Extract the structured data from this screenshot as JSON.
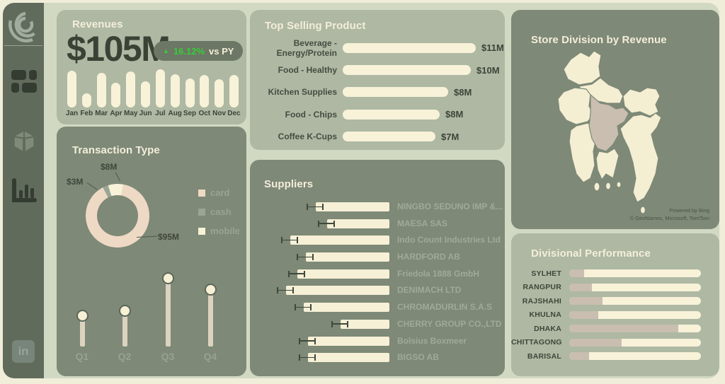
{
  "colors": {
    "frame": "#f0edd9",
    "background": "#d2d9c3",
    "sidebar": "#616b5c",
    "panel_light": "#aeb8a3",
    "panel_dark": "#7e8977",
    "cream": "#f8f2d9",
    "peach": "#eed9c5",
    "gray": "#9aa595",
    "taupe": "#c9beb0",
    "text_dark": "#3a4135",
    "text_light": "#f3eeda",
    "text_muted": "#a0aa97",
    "green": "#38cd38"
  },
  "sidebar": {
    "icons": [
      "logo-arcs",
      "dashboard-grid",
      "cube",
      "bar-chart",
      "linkedin"
    ],
    "linkedin_text": "in"
  },
  "revenues": {
    "title": "Revenues",
    "value": "$105M",
    "delta_arrow": "▲",
    "delta": "16.12%",
    "delta_label": "vs PY",
    "months": [
      "Jan",
      "Feb",
      "Mar",
      "Apr",
      "May",
      "Jun",
      "Jul",
      "Aug",
      "Sep",
      "Oct",
      "Nov",
      "Dec"
    ],
    "values": [
      96,
      38,
      90,
      64,
      95,
      69,
      100,
      88,
      76,
      86,
      75,
      86
    ]
  },
  "transaction": {
    "title": "Transaction Type",
    "segments": [
      {
        "label": "card",
        "value_m": 95,
        "display": "$95M",
        "color": "#eed9c5"
      },
      {
        "label": "cash",
        "value_m": 3,
        "display": "$3M",
        "color": "#9aa595"
      },
      {
        "label": "mobile",
        "value_m": 8,
        "display": "$8M",
        "color": "#f8f2d9"
      }
    ],
    "quarters": {
      "categories": [
        "Q1",
        "Q2",
        "Q3",
        "Q4"
      ],
      "values": [
        42,
        50,
        100,
        83
      ]
    }
  },
  "top_selling": {
    "title": "Top Selling Product",
    "items": [
      {
        "label": "Beverage - Energy/Protein",
        "value": "$11M",
        "length": 188
      },
      {
        "label": "Food - Healthy",
        "value": "$10M",
        "length": 181
      },
      {
        "label": "Kitchen Supplies",
        "value": "$8M",
        "length": 149
      },
      {
        "label": "Food - Chips",
        "value": "$8M",
        "length": 137
      },
      {
        "label": "Coffee K-Cups",
        "value": "$7M",
        "length": 131
      }
    ]
  },
  "suppliers": {
    "title": "Suppliers",
    "items": [
      {
        "label": "NINGBO SEDUNO IMP &...",
        "length": 71
      },
      {
        "label": "MAESA SAS",
        "length": 60
      },
      {
        "label": "Indo Count Industries Ltd",
        "length": 96
      },
      {
        "label": "HARDFORD AB",
        "length": 81
      },
      {
        "label": "Friedola 1888 GmbH",
        "length": 89
      },
      {
        "label": "DENIMACH LTD",
        "length": 100
      },
      {
        "label": "CHROMADURLIN S.A.S",
        "length": 83
      },
      {
        "label": "CHERRY GROUP CO.,LTD",
        "length": 47
      },
      {
        "label": "Bolsius Boxmeer",
        "length": 79
      },
      {
        "label": "BIGSO AB",
        "length": 79
      }
    ]
  },
  "map_panel": {
    "title": "Store Division by Revenue",
    "highlighted_division": "Dhaka",
    "attribution_line1": "Powered by Bing",
    "attribution_line2": "© GeoNames, Microsoft, TomTom"
  },
  "divisional": {
    "title": "Divisional Performance",
    "items": [
      {
        "label": "SYLHET",
        "fill": 11
      },
      {
        "label": "RANGPUR",
        "fill": 17
      },
      {
        "label": "RAJSHAHI",
        "fill": 25
      },
      {
        "label": "KHULNA",
        "fill": 22
      },
      {
        "label": "DHAKA",
        "fill": 83
      },
      {
        "label": "CHITTAGONG",
        "fill": 40
      },
      {
        "label": "BARISAL",
        "fill": 15
      }
    ]
  },
  "chart_data": [
    {
      "type": "bar",
      "title": "Revenues",
      "kpi": "$105M",
      "kpi_delta": "▲ 16.12% vs PY",
      "categories": [
        "Jan",
        "Feb",
        "Mar",
        "Apr",
        "May",
        "Jun",
        "Jul",
        "Aug",
        "Sep",
        "Oct",
        "Nov",
        "Dec"
      ],
      "values": [
        96,
        38,
        90,
        64,
        95,
        69,
        100,
        88,
        76,
        86,
        75,
        86
      ],
      "note": "monthly bars, no value axis shown; values are relative heights (% of max)"
    },
    {
      "type": "pie",
      "title": "Transaction Type",
      "labels": [
        "card",
        "cash",
        "mobile"
      ],
      "values": [
        95,
        3,
        8
      ],
      "unit": "$M",
      "labels_display": [
        "$95M",
        "$3M",
        "$8M"
      ],
      "legend_position": "right",
      "donut": true
    },
    {
      "type": "bar",
      "title": "Transaction Type by Quarter (lollipop)",
      "categories": [
        "Q1",
        "Q2",
        "Q3",
        "Q4"
      ],
      "values": [
        42,
        50,
        100,
        83
      ],
      "note": "lollipop chart, no value axis shown; relative heights (% of max)"
    },
    {
      "type": "bar",
      "title": "Top Selling Product",
      "orientation": "horizontal",
      "categories": [
        "Beverage - Energy/Protein",
        "Food - Healthy",
        "Kitchen Supplies",
        "Food - Chips",
        "Coffee K-Cups"
      ],
      "values": [
        11,
        10,
        8,
        8,
        7
      ],
      "unit": "$M"
    },
    {
      "type": "bar",
      "title": "Suppliers",
      "orientation": "horizontal",
      "categories": [
        "NINGBO SEDUNO IMP &...",
        "MAESA SAS",
        "Indo Count Industries Ltd",
        "HARDFORD AB",
        "Friedola 1888 GmbH",
        "DENIMACH LTD",
        "CHROMADURLIN S.A.S",
        "CHERRY GROUP CO.,LTD",
        "Bolsius Boxmeer",
        "BIGSO AB"
      ],
      "values": [
        71,
        60,
        96,
        81,
        89,
        100,
        83,
        47,
        79,
        79
      ],
      "note": "right-aligned bars with left error whiskers; values are relative lengths (% of max)"
    },
    {
      "type": "heatmap",
      "title": "Store Division by Revenue",
      "region": "Bangladesh divisions",
      "highlighted": [
        "Dhaka"
      ],
      "note": "choropleth map; Dhaka division shaded taupe, others cream"
    },
    {
      "type": "bar",
      "title": "Divisional Performance",
      "orientation": "horizontal",
      "categories": [
        "SYLHET",
        "RANGPUR",
        "RAJSHAHI",
        "KHULNA",
        "DHAKA",
        "CHITTAGONG",
        "BARISAL"
      ],
      "values": [
        11,
        17,
        25,
        22,
        83,
        40,
        15
      ],
      "unit": "% of track filled",
      "note": "progress-style bars: taupe filled portion over cream track"
    }
  ]
}
